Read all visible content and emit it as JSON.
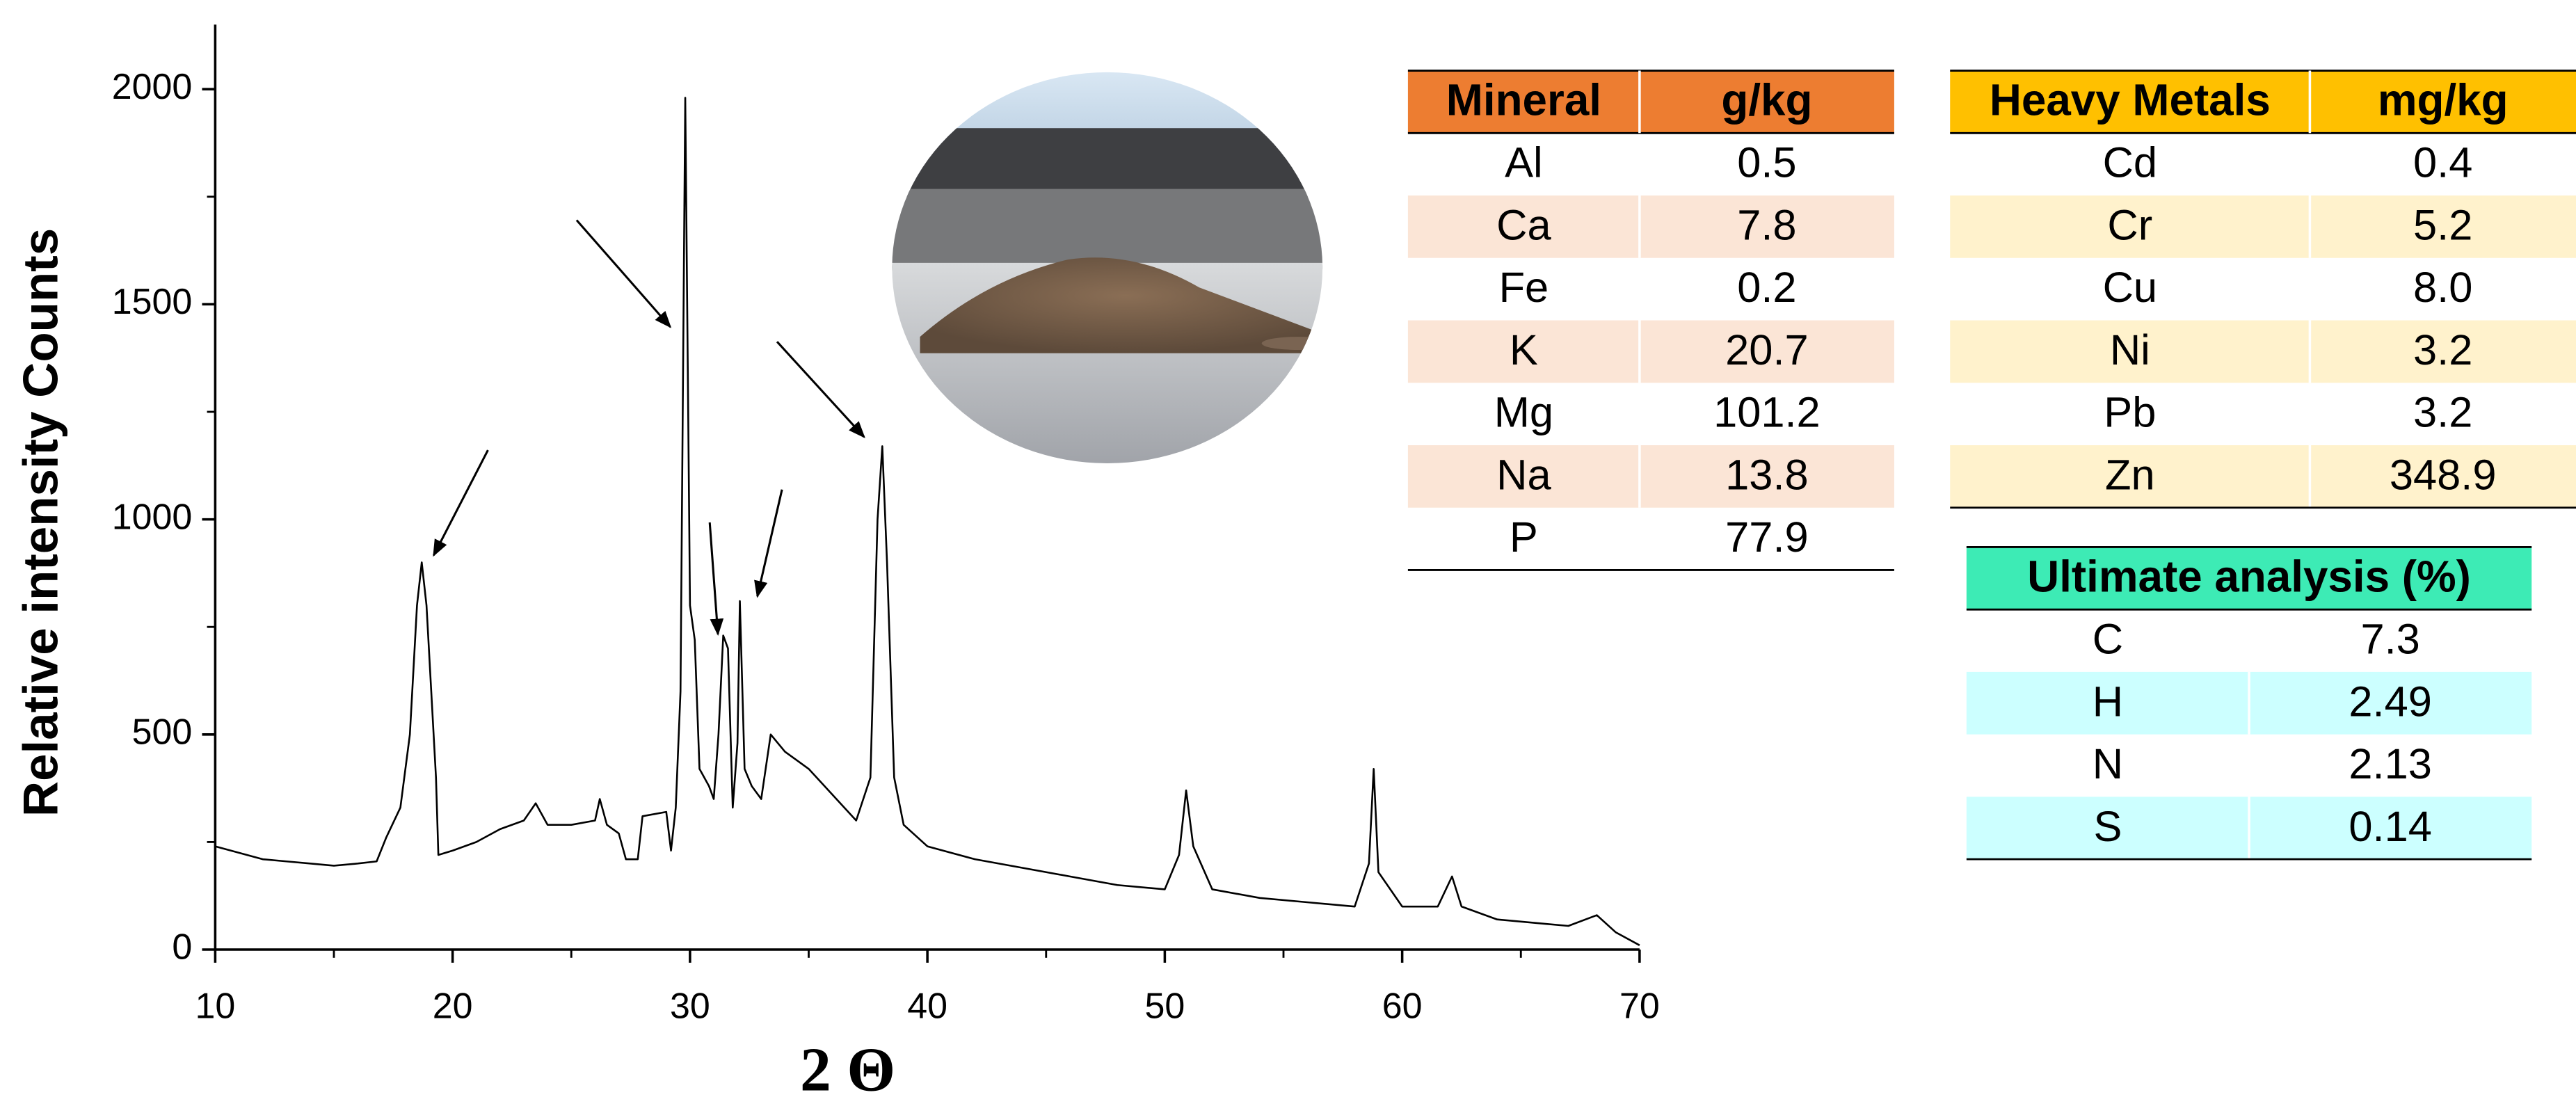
{
  "chart_data": {
    "type": "line",
    "y_label": "Relative intensity Counts",
    "x_label": "2 Θ",
    "xlim": [
      10,
      70
    ],
    "ylim": [
      0,
      2150
    ],
    "xticks": [
      10,
      20,
      30,
      40,
      50,
      60,
      70
    ],
    "x_minor_ticks": [
      15,
      25,
      35,
      45,
      55,
      65
    ],
    "yticks": [
      0,
      500,
      1000,
      1500,
      2000
    ],
    "y_minor_ticks": [
      250,
      750,
      1250,
      1750
    ],
    "x": [
      10,
      11,
      12,
      13,
      14,
      15,
      16,
      16.8,
      17.2,
      17.8,
      18.2,
      18.5,
      18.7,
      18.9,
      19.1,
      19.3,
      19.4,
      20,
      21,
      22,
      23,
      23.5,
      24,
      25,
      26,
      26.2,
      26.5,
      27,
      27.3,
      27.8,
      28,
      29,
      29.2,
      29.4,
      29.6,
      29.8,
      30,
      30.2,
      30.4,
      30.8,
      31,
      31.2,
      31.4,
      31.6,
      31.8,
      32,
      32.1,
      32.3,
      32.6,
      33,
      33.4,
      34,
      35,
      36,
      37,
      37.6,
      37.9,
      38.1,
      38.3,
      38.6,
      39,
      40,
      42,
      44,
      46,
      48,
      50,
      50.6,
      50.9,
      51.2,
      52,
      54,
      56,
      58,
      58.6,
      58.8,
      59,
      60,
      61.5,
      62.1,
      62.5,
      64,
      66,
      67,
      68.2,
      69,
      70
    ],
    "series": [
      {
        "color": "#000000",
        "values": [
          240,
          225,
          210,
          205,
          200,
          195,
          200,
          205,
          260,
          330,
          500,
          800,
          900,
          800,
          600,
          400,
          220,
          230,
          250,
          280,
          300,
          340,
          290,
          290,
          300,
          350,
          290,
          270,
          210,
          210,
          310,
          320,
          230,
          330,
          600,
          1980,
          800,
          720,
          420,
          380,
          350,
          500,
          730,
          700,
          330,
          480,
          810,
          420,
          380,
          350,
          500,
          460,
          420,
          360,
          300,
          400,
          1000,
          1170,
          900,
          400,
          290,
          240,
          210,
          190,
          170,
          150,
          140,
          220,
          370,
          240,
          140,
          120,
          110,
          100,
          200,
          420,
          180,
          100,
          100,
          170,
          100,
          70,
          60,
          55,
          80,
          40,
          10
        ]
      }
    ]
  },
  "tables": {
    "mineral": {
      "header": [
        "Mineral",
        "g/kg"
      ],
      "header_color": "#ED7D31",
      "stripe_color": "#FBE5D6",
      "rows": [
        [
          "Al",
          "0.5"
        ],
        [
          "Ca",
          "7.8"
        ],
        [
          "Fe",
          "0.2"
        ],
        [
          "K",
          "20.7"
        ],
        [
          "Mg",
          "101.2"
        ],
        [
          "Na",
          "13.8"
        ],
        [
          "P",
          "77.9"
        ]
      ]
    },
    "heavy_metals": {
      "header": [
        "Heavy Metals",
        "mg/kg"
      ],
      "header_color": "#FFC000",
      "stripe_color": "#FFF2CC",
      "rows": [
        [
          "Cd",
          "0.4"
        ],
        [
          "Cr",
          "5.2"
        ],
        [
          "Cu",
          "8.0"
        ],
        [
          "Ni",
          "3.2"
        ],
        [
          "Pb",
          "3.2"
        ],
        [
          "Zn",
          "348.9"
        ]
      ]
    },
    "ultimate": {
      "header": [
        "Ultimate analysis (%)"
      ],
      "header_color": "#3DEBB5",
      "stripe_color": "#CCFFFF",
      "rows": [
        [
          "C",
          "7.3"
        ],
        [
          "H",
          "2.49"
        ],
        [
          "N",
          "2.13"
        ],
        [
          "S",
          "0.14"
        ]
      ]
    }
  }
}
